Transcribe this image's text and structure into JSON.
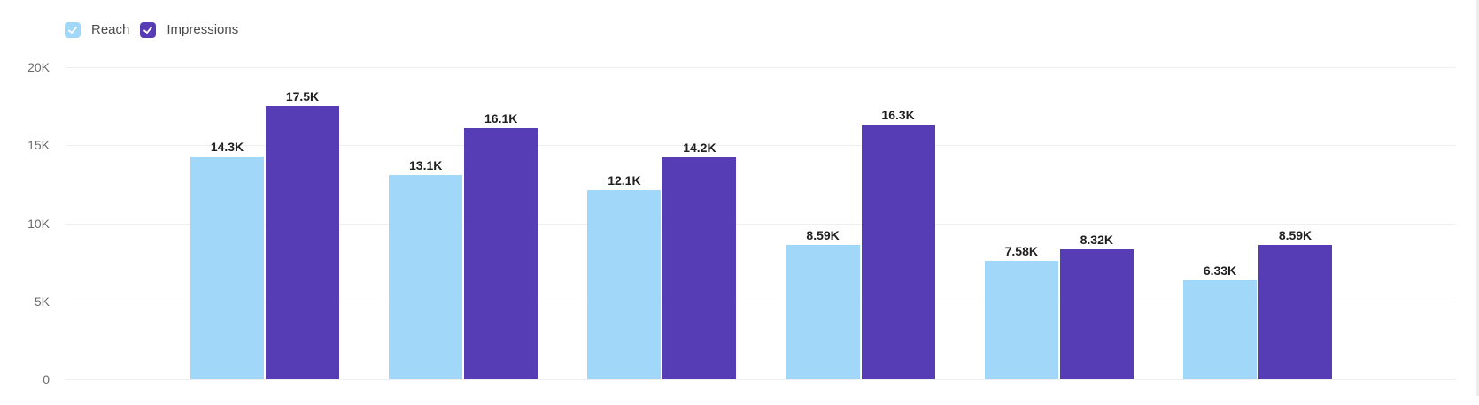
{
  "legend": [
    {
      "label": "Reach",
      "color": "#a1d7f9",
      "checked": true,
      "icon": "check-icon"
    },
    {
      "label": "Impressions",
      "color": "#563db6",
      "checked": true,
      "icon": "check-icon"
    }
  ],
  "y_axis": {
    "ticks": [
      {
        "label": "20K",
        "value": 20000
      },
      {
        "label": "15K",
        "value": 15000
      },
      {
        "label": "10K",
        "value": 10000
      },
      {
        "label": "5K",
        "value": 5000
      },
      {
        "label": "0",
        "value": 0
      }
    ]
  },
  "bar_labels": {
    "reach": [
      "14.3K",
      "13.1K",
      "12.1K",
      "8.59K",
      "7.58K",
      "6.33K"
    ],
    "impressions": [
      "17.5K",
      "16.1K",
      "14.2K",
      "16.3K",
      "8.32K",
      "8.59K"
    ]
  },
  "chart_data": {
    "type": "bar",
    "title": "",
    "xlabel": "",
    "ylabel": "",
    "categories": [
      "",
      "",
      "",
      "",
      "",
      ""
    ],
    "series": [
      {
        "name": "Reach",
        "color": "#a1d7f9",
        "values": [
          14300,
          13100,
          12100,
          8590,
          7580,
          6330
        ]
      },
      {
        "name": "Impressions",
        "color": "#563db6",
        "values": [
          17500,
          16100,
          14200,
          16300,
          8320,
          8590
        ]
      }
    ],
    "ylim": [
      0,
      20000
    ],
    "yticks": [
      0,
      5000,
      10000,
      15000,
      20000
    ],
    "ytick_labels": [
      "0",
      "5K",
      "10K",
      "15K",
      "20K"
    ],
    "grid": true,
    "legend_position": "top-left",
    "data_labels": true
  }
}
